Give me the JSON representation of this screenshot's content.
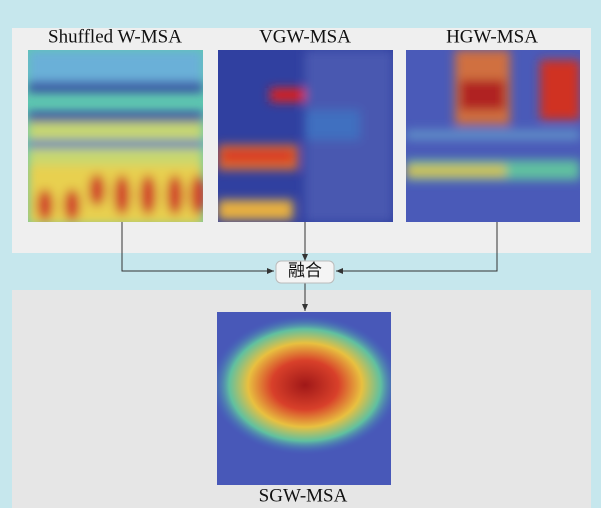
{
  "inputs": [
    {
      "label": "Shuffled W-MSA"
    },
    {
      "label": "VGW-MSA"
    },
    {
      "label": "HGW-MSA"
    }
  ],
  "fusion": {
    "label": "融合"
  },
  "output": {
    "label": "SGW-MSA"
  }
}
